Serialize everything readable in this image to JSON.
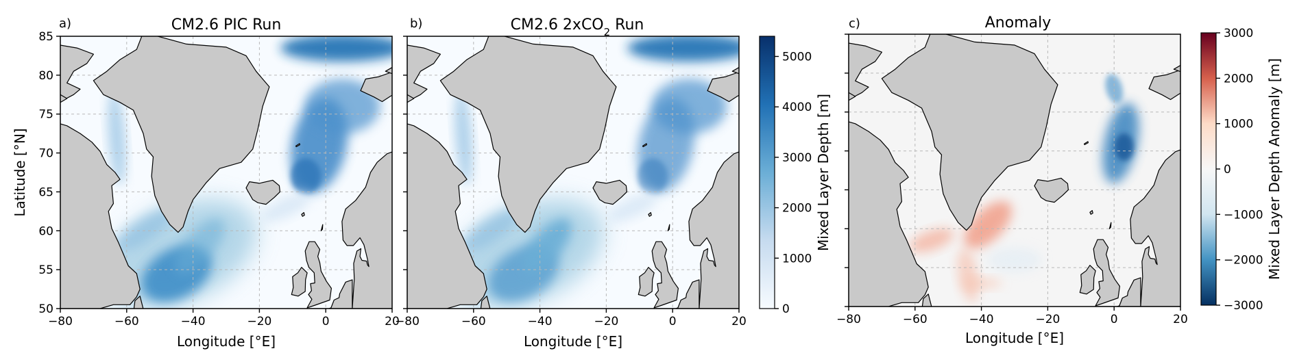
{
  "panels": [
    {
      "letter": "a)",
      "title": "CM2.6 PIC Run",
      "title_sub": "",
      "title_suffix": "",
      "xlabel": "Longitude [°E]",
      "ylabel": "Latitude [°N]",
      "field": "depth",
      "variant": "pic"
    },
    {
      "letter": "b)",
      "title": "CM2.6 2xCO",
      "title_sub": "2",
      "title_suffix": " Run",
      "xlabel": "Longitude [°E]",
      "ylabel": "",
      "field": "depth",
      "variant": "co2"
    },
    {
      "letter": "c)",
      "title": "Anomaly",
      "title_sub": "",
      "title_suffix": "",
      "xlabel": "Longitude [°E]",
      "ylabel": "",
      "field": "anomaly",
      "variant": "anom"
    }
  ],
  "axes": {
    "x_ticks": [
      "−80",
      "−60",
      "−40",
      "−20",
      "0",
      "20"
    ],
    "x_values": [
      -80,
      -60,
      -40,
      -20,
      0,
      20
    ],
    "y_ticks": [
      "50",
      "55",
      "60",
      "65",
      "70",
      "75",
      "80",
      "85"
    ],
    "y_values": [
      50,
      55,
      60,
      65,
      70,
      75,
      80,
      85
    ],
    "xlim": [
      -80,
      20
    ],
    "ylim": [
      50,
      85
    ],
    "grid": true
  },
  "colorbars": [
    {
      "label": "Mixed Layer Depth [m]",
      "ticks": [
        "0",
        "1000",
        "2000",
        "3000",
        "4000",
        "5000"
      ],
      "values": [
        0,
        1000,
        2000,
        3000,
        4000,
        5000
      ],
      "range": [
        0,
        5400
      ],
      "colormap": "Blues",
      "stops": [
        "#f7fbff",
        "#c6dbef",
        "#6baed6",
        "#2171b5",
        "#08306b"
      ]
    },
    {
      "label": "Mixed Layer Depth Anomaly [m]",
      "ticks": [
        "3000",
        "2000",
        "1000",
        "0",
        "−1000",
        "−2000",
        "−3000"
      ],
      "values": [
        3000,
        2000,
        1000,
        0,
        -1000,
        -2000,
        -3000
      ],
      "range": [
        -3000,
        3000
      ],
      "colormap": "RdBu_r",
      "stops": [
        "#67001f",
        "#d6604d",
        "#fddbc7",
        "#f7f7f7",
        "#d1e5f0",
        "#4393c3",
        "#053061"
      ]
    }
  ],
  "colors": {
    "land": "#c9c9c9",
    "ocean_bg": "#f7fbff",
    "anomaly_bg": "#f5f5f5"
  }
}
